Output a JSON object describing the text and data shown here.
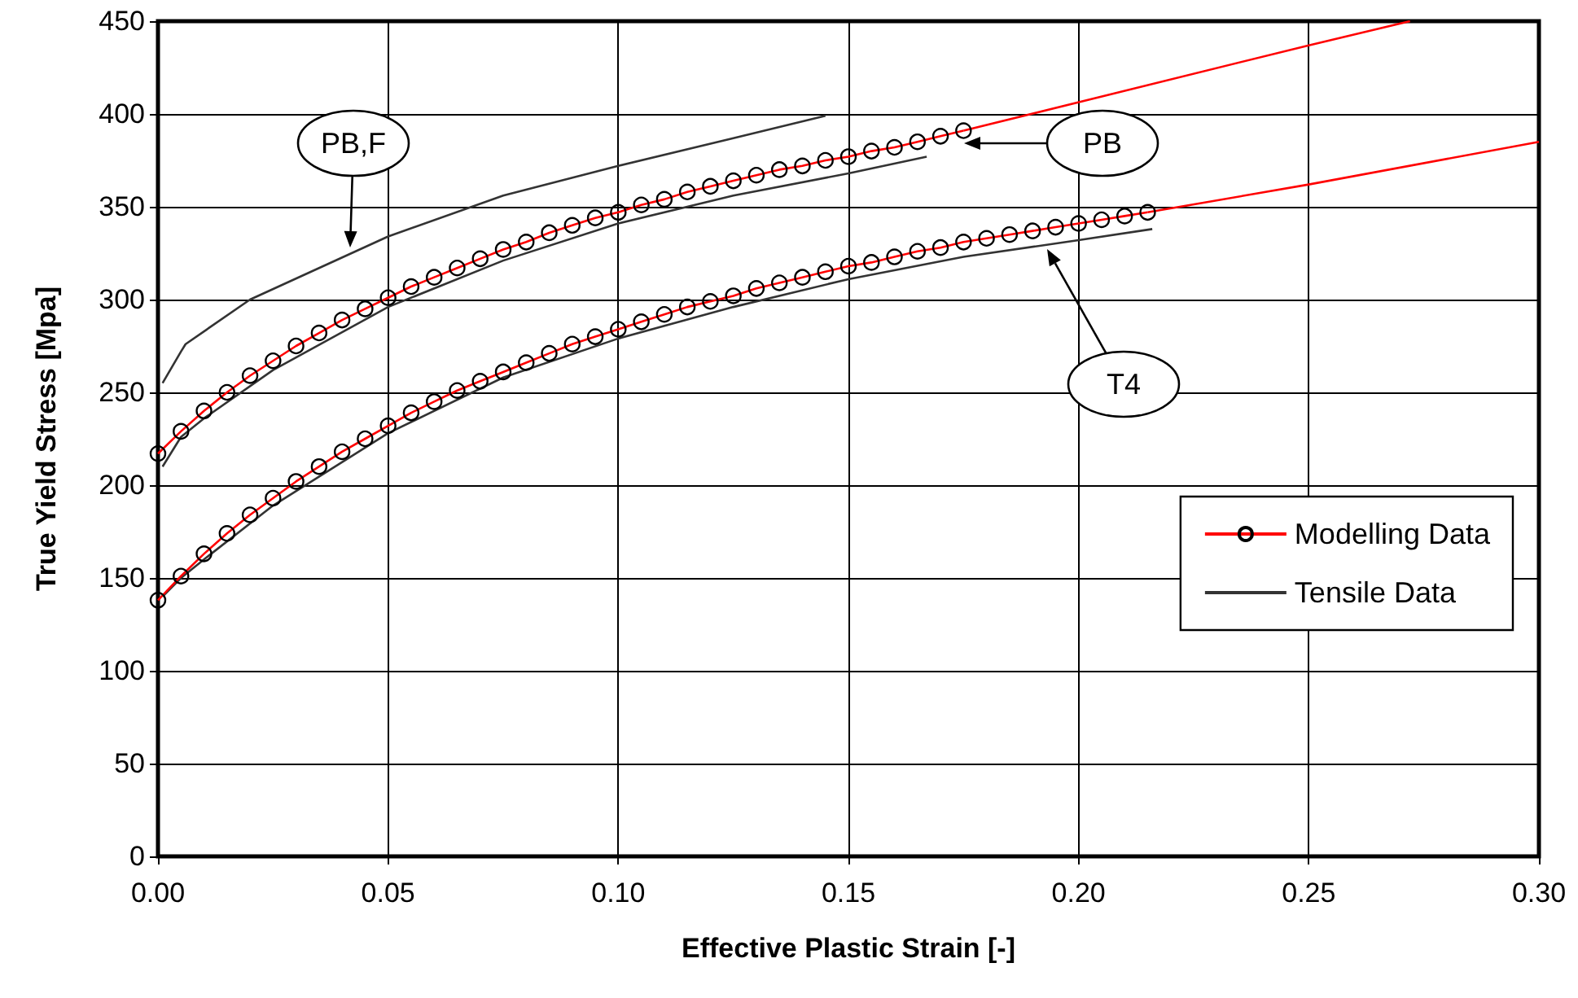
{
  "chart_data": {
    "type": "line",
    "xlabel": "Effective Plastic Strain [-]",
    "ylabel": "True Yield Stress [Mpa]",
    "xlim": [
      0,
      0.3
    ],
    "ylim": [
      0,
      450
    ],
    "xticks": [
      {
        "value": 0,
        "label": "0.00"
      },
      {
        "value": 0.05,
        "label": "0.05"
      },
      {
        "value": 0.1,
        "label": "0.10"
      },
      {
        "value": 0.15,
        "label": "0.15"
      },
      {
        "value": 0.2,
        "label": "0.20"
      },
      {
        "value": 0.25,
        "label": "0.25"
      },
      {
        "value": 0.3,
        "label": "0.30"
      }
    ],
    "yticks": [
      0,
      50,
      100,
      150,
      200,
      250,
      300,
      350,
      400,
      450
    ],
    "grid": true,
    "legend": "right",
    "line_style": "solid",
    "series": [
      {
        "name": "Modelling Data",
        "color": "#ff0000",
        "marker": "circle",
        "x": [
          0,
          0.005,
          0.01,
          0.015,
          0.02,
          0.025,
          0.03,
          0.035,
          0.04,
          0.045,
          0.05,
          0.055,
          0.06,
          0.065,
          0.07,
          0.075,
          0.08,
          0.085,
          0.09,
          0.095,
          0.1,
          0.105,
          0.11,
          0.115,
          0.12,
          0.125,
          0.13,
          0.135,
          0.14,
          0.145,
          0.15,
          0.155,
          0.16,
          0.165,
          0.17,
          0.175
        ],
        "values": [
          217,
          229,
          240,
          250,
          259,
          267,
          275,
          282,
          289,
          295,
          301,
          307,
          312,
          317,
          322,
          327,
          331,
          336,
          340,
          344,
          347,
          351,
          354,
          358,
          361,
          364,
          367,
          370,
          372,
          375,
          377,
          380,
          382,
          385,
          388,
          391
        ]
      },
      {
        "color": "#ff0000",
        "marker": "none",
        "x": [
          0.175,
          0.25,
          0.272
        ],
        "values": [
          391,
          437,
          450
        ]
      },
      {
        "color": "#ff0000",
        "marker": "circle",
        "x": [
          0,
          0.005,
          0.01,
          0.015,
          0.02,
          0.025,
          0.03,
          0.035,
          0.04,
          0.045,
          0.05,
          0.055,
          0.06,
          0.065,
          0.07,
          0.075,
          0.08,
          0.085,
          0.09,
          0.095,
          0.1,
          0.105,
          0.11,
          0.115,
          0.12,
          0.125,
          0.13,
          0.135,
          0.14,
          0.145,
          0.15,
          0.155,
          0.16,
          0.165,
          0.17,
          0.175,
          0.18,
          0.185,
          0.19,
          0.195,
          0.2,
          0.205,
          0.21,
          0.215
        ],
        "values": [
          138,
          151,
          163,
          174,
          184,
          193,
          202,
          210,
          218,
          225,
          232,
          239,
          245,
          251,
          256,
          261,
          266,
          271,
          276,
          280,
          284,
          288,
          292,
          296,
          299,
          302,
          306,
          309,
          312,
          315,
          318,
          320,
          323,
          326,
          328,
          331,
          333,
          335,
          337,
          339,
          341,
          343,
          345,
          347
        ]
      },
      {
        "color": "#ff0000",
        "marker": "none",
        "x": [
          0.215,
          0.25,
          0.3
        ],
        "values": [
          347,
          362,
          385
        ]
      },
      {
        "name": "Tensile Data",
        "color": "#333333",
        "marker": "none",
        "x": [
          0.001,
          0.005,
          0.006,
          0.02,
          0.05,
          0.075,
          0.1,
          0.125,
          0.145
        ],
        "values": [
          255,
          272,
          276,
          300,
          334,
          356,
          372,
          387,
          399
        ]
      },
      {
        "color": "#333333",
        "marker": "none",
        "x": [
          0.001,
          0.005,
          0.01,
          0.025,
          0.05,
          0.075,
          0.1,
          0.125,
          0.15,
          0.167
        ],
        "values": [
          210,
          226,
          236,
          262,
          296,
          321,
          341,
          356,
          368,
          377
        ]
      },
      {
        "color": "#333333",
        "marker": "none",
        "x": [
          0.001,
          0.005,
          0.01,
          0.025,
          0.05,
          0.075,
          0.1,
          0.125,
          0.15,
          0.175,
          0.2,
          0.216
        ],
        "values": [
          140,
          150,
          160,
          189,
          228,
          258,
          279,
          296,
          311,
          323,
          332,
          338
        ]
      }
    ],
    "annotations": [
      "PB,F",
      "PB",
      "T4"
    ]
  }
}
